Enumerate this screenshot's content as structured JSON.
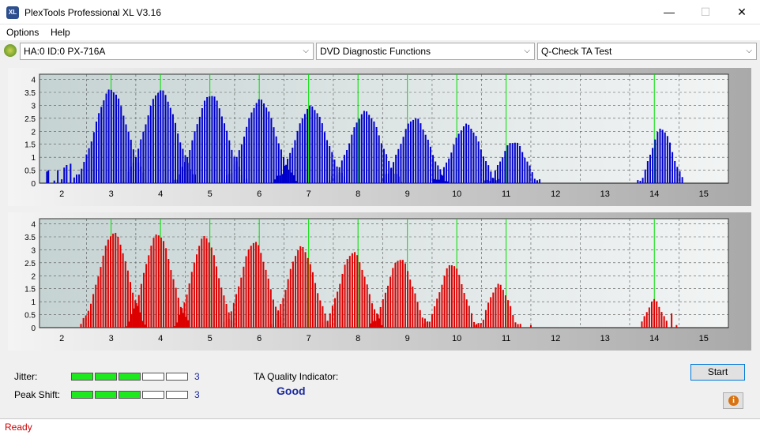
{
  "window": {
    "title": "PlexTools Professional XL V3.16",
    "icon_text": "XL",
    "minimize_glyph": "—",
    "maximize_glyph": "☐",
    "close_glyph": "✕"
  },
  "menu": [
    "Options",
    "Help"
  ],
  "toolbar": {
    "drive": "HA:0 ID:0  PX-716A",
    "function": "DVD Diagnostic Functions",
    "test": "Q-Check TA Test"
  },
  "chart_data": [
    {
      "type": "bar",
      "series_color": "#0000cc",
      "x_ticks": [
        2,
        3,
        4,
        5,
        6,
        7,
        8,
        9,
        10,
        11,
        12,
        13,
        14,
        15
      ],
      "y_ticks": [
        "0",
        "0.5",
        "1",
        "1.5",
        "2",
        "2.5",
        "3",
        "3.5",
        "4"
      ],
      "xlim": [
        1.55,
        15.5
      ],
      "ylim": [
        0,
        4.2
      ],
      "markers": [
        3,
        4,
        5,
        6,
        7,
        8,
        9,
        10,
        11,
        14
      ],
      "peaks": [
        {
          "c": 3.0,
          "h": 3.65,
          "s": 0.34
        },
        {
          "c": 4.0,
          "h": 3.62,
          "s": 0.34
        },
        {
          "c": 5.02,
          "h": 3.45,
          "s": 0.33
        },
        {
          "c": 6.02,
          "h": 3.25,
          "s": 0.33
        },
        {
          "c": 7.05,
          "h": 3.0,
          "s": 0.33
        },
        {
          "c": 8.15,
          "h": 2.8,
          "s": 0.33
        },
        {
          "c": 9.15,
          "h": 2.55,
          "s": 0.31
        },
        {
          "c": 10.2,
          "h": 2.3,
          "s": 0.3
        },
        {
          "c": 11.15,
          "h": 1.65,
          "s": 0.26
        },
        {
          "c": 14.15,
          "h": 2.15,
          "s": 0.22
        }
      ],
      "noise": [
        {
          "x": 1.7,
          "h": 0.45
        },
        {
          "x": 1.73,
          "h": 0.5
        },
        {
          "x": 1.85,
          "h": 0.1
        },
        {
          "x": 1.92,
          "h": 0.5
        },
        {
          "x": 2.0,
          "h": 0.15
        },
        {
          "x": 2.05,
          "h": 0.6
        },
        {
          "x": 2.1,
          "h": 0.7
        },
        {
          "x": 2.18,
          "h": 0.75
        }
      ]
    },
    {
      "type": "bar",
      "series_color": "#dd0000",
      "x_ticks": [
        2,
        3,
        4,
        5,
        6,
        7,
        8,
        9,
        10,
        11,
        12,
        13,
        14,
        15
      ],
      "y_ticks": [
        "0",
        "0.5",
        "1",
        "1.5",
        "2",
        "2.5",
        "3",
        "3.5",
        "4"
      ],
      "xlim": [
        1.55,
        15.5
      ],
      "ylim": [
        0,
        4.2
      ],
      "markers": [
        3,
        4,
        5,
        6,
        7,
        8,
        9,
        10,
        11,
        14
      ],
      "peaks": [
        {
          "c": 3.05,
          "h": 3.7,
          "s": 0.3
        },
        {
          "c": 3.95,
          "h": 3.65,
          "s": 0.29
        },
        {
          "c": 4.9,
          "h": 3.55,
          "s": 0.28
        },
        {
          "c": 5.9,
          "h": 3.35,
          "s": 0.28
        },
        {
          "c": 6.85,
          "h": 3.15,
          "s": 0.28
        },
        {
          "c": 7.9,
          "h": 2.95,
          "s": 0.28
        },
        {
          "c": 8.85,
          "h": 2.7,
          "s": 0.27
        },
        {
          "c": 9.9,
          "h": 2.5,
          "s": 0.25
        },
        {
          "c": 10.85,
          "h": 1.7,
          "s": 0.21
        },
        {
          "c": 14.0,
          "h": 1.1,
          "s": 0.16
        }
      ],
      "noise": [
        {
          "x": 11.5,
          "h": 0.1
        },
        {
          "x": 14.35,
          "h": 0.55
        },
        {
          "x": 14.45,
          "h": 0.1
        }
      ]
    }
  ],
  "bottom": {
    "jitter_label": "Jitter:",
    "jitter_value": "3",
    "jitter_level": 3,
    "peak_label": "Peak Shift:",
    "peak_value": "3",
    "peak_level": 3,
    "meter_segments": 5,
    "ta_label": "TA Quality Indicator:",
    "ta_value": "Good",
    "start": "Start"
  },
  "status": "Ready"
}
